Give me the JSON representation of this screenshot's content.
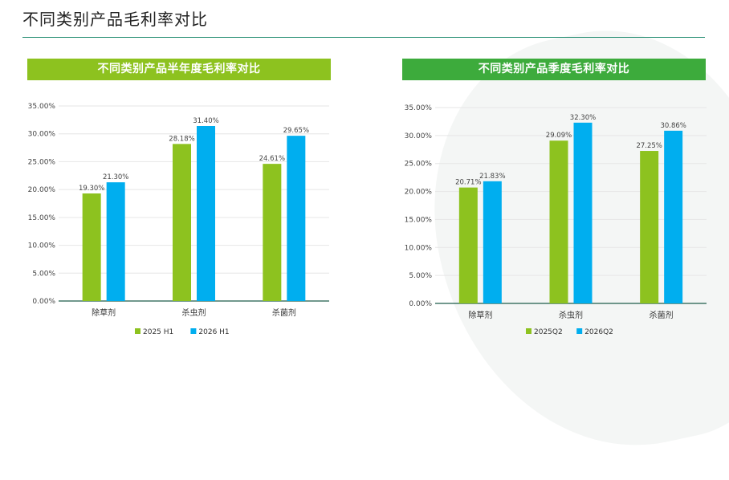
{
  "page": {
    "title": "不同类别产品毛利率对比"
  },
  "colors": {
    "series1": "#8dc21f",
    "series2": "#00aeef",
    "header_left": "#8dc21f",
    "header_right": "#3dab3c",
    "rule": "#1f8a6e"
  },
  "chart_data": [
    {
      "type": "bar",
      "title": "不同类别产品半年度毛利率对比",
      "categories": [
        "除草剂",
        "杀虫剂",
        "杀菌剂"
      ],
      "series": [
        {
          "name": "2025 H1",
          "values": [
            19.3,
            28.18,
            24.61
          ]
        },
        {
          "name": "2026 H1",
          "values": [
            21.3,
            31.4,
            29.65
          ]
        }
      ],
      "ylim": [
        0,
        35
      ],
      "yticks": [
        "0.00%",
        "5.00%",
        "10.00%",
        "15.00%",
        "20.00%",
        "25.00%",
        "30.00%",
        "35.00%"
      ],
      "data_labels": [
        [
          "19.30%",
          "28.18%",
          "24.61%"
        ],
        [
          "21.30%",
          "31.40%",
          "29.65%"
        ]
      ],
      "grid": true,
      "legend": "bottom"
    },
    {
      "type": "bar",
      "title": "不同类别产品季度毛利率对比",
      "categories": [
        "除草剂",
        "杀虫剂",
        "杀菌剂"
      ],
      "series": [
        {
          "name": "2025Q2",
          "values": [
            20.71,
            29.09,
            27.25
          ]
        },
        {
          "name": "2026Q2",
          "values": [
            21.83,
            32.3,
            30.86
          ]
        }
      ],
      "ylim": [
        0,
        35
      ],
      "yticks": [
        "0.00%",
        "5.00%",
        "10.00%",
        "15.00%",
        "20.00%",
        "25.00%",
        "30.00%",
        "35.00%"
      ],
      "data_labels": [
        [
          "20.71%",
          "29.09%",
          "27.25%"
        ],
        [
          "21.83%",
          "32.30%",
          "30.86%"
        ]
      ],
      "grid": true,
      "legend": "bottom"
    }
  ]
}
